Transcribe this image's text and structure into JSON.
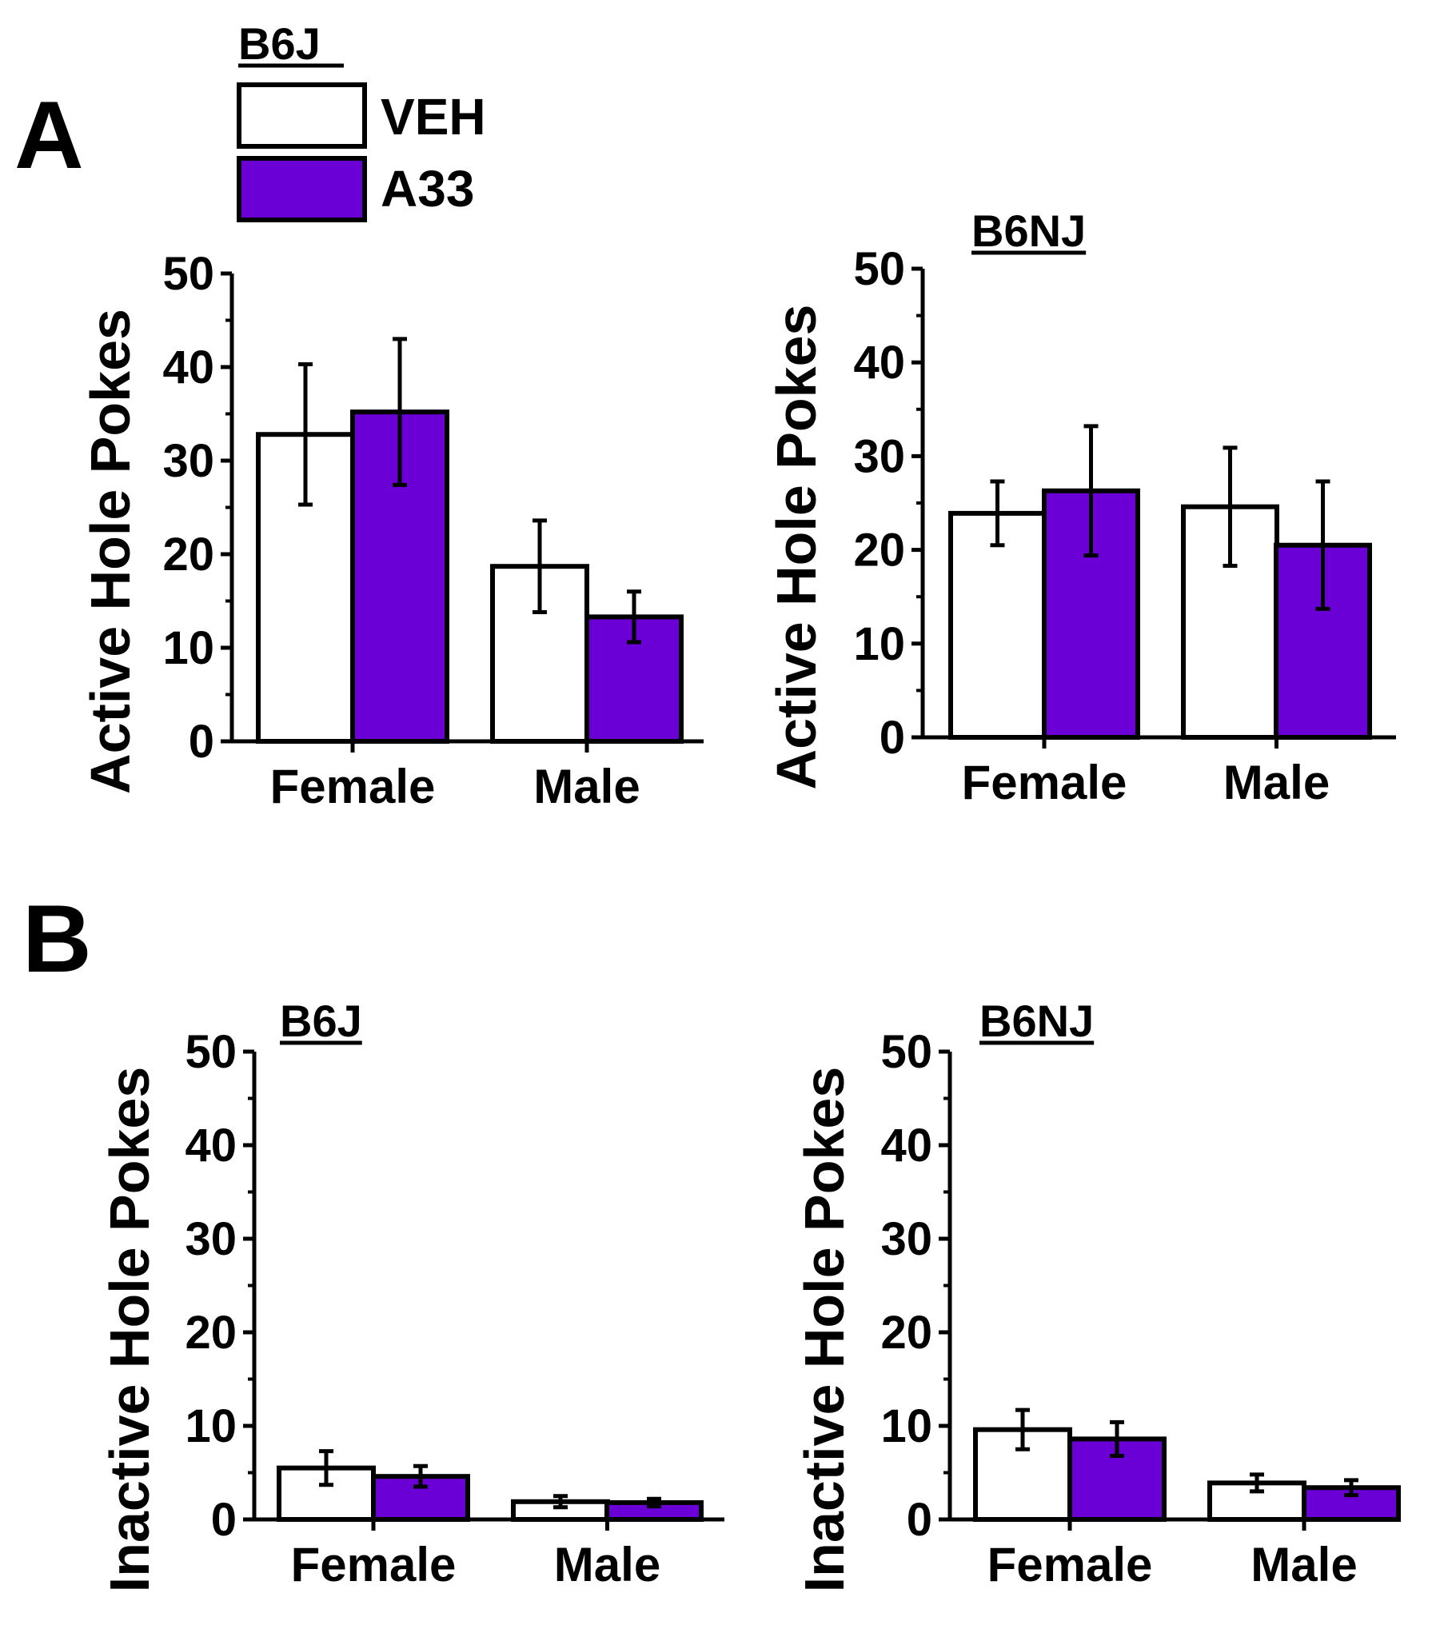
{
  "colors": {
    "veh": "#ffffff",
    "a33": "#6b00d6",
    "stroke": "#000000"
  },
  "panel_labels": {
    "a": "A",
    "b": "B"
  },
  "legend": {
    "title": "B6J",
    "items": [
      {
        "label": "VEH",
        "color": "#ffffff"
      },
      {
        "label": "A33",
        "color": "#6b00d6"
      }
    ]
  },
  "chart_data": [
    {
      "id": "active-b6j",
      "type": "bar",
      "title": "",
      "ylabel": "Active Hole Pokes",
      "ylim": [
        0,
        50
      ],
      "yticks": [
        0,
        10,
        20,
        30,
        40,
        50
      ],
      "categories": [
        "Female",
        "Male"
      ],
      "series": [
        {
          "name": "VEH",
          "values": [
            32.8,
            18.7
          ],
          "errors": [
            7.5,
            4.9
          ]
        },
        {
          "name": "A33",
          "values": [
            35.2,
            13.3
          ],
          "errors": [
            7.8,
            2.7
          ]
        }
      ]
    },
    {
      "id": "active-b6nj",
      "type": "bar",
      "title": "B6NJ",
      "ylabel": "Active Hole Pokes",
      "ylim": [
        0,
        50
      ],
      "yticks": [
        0,
        10,
        20,
        30,
        40,
        50
      ],
      "categories": [
        "Female",
        "Male"
      ],
      "series": [
        {
          "name": "VEH",
          "values": [
            23.9,
            24.6
          ],
          "errors": [
            3.4,
            6.3
          ]
        },
        {
          "name": "A33",
          "values": [
            26.3,
            20.5
          ],
          "errors": [
            6.9,
            6.8
          ]
        }
      ]
    },
    {
      "id": "inactive-b6j",
      "type": "bar",
      "title": "B6J",
      "ylabel": "Inactive Hole Pokes",
      "ylim": [
        0,
        50
      ],
      "yticks": [
        0,
        10,
        20,
        30,
        40,
        50
      ],
      "categories": [
        "Female",
        "Male"
      ],
      "series": [
        {
          "name": "VEH",
          "values": [
            5.5,
            1.9
          ],
          "errors": [
            1.8,
            0.6
          ]
        },
        {
          "name": "A33",
          "values": [
            4.6,
            1.8
          ],
          "errors": [
            1.1,
            0.4
          ]
        }
      ]
    },
    {
      "id": "inactive-b6nj",
      "type": "bar",
      "title": "B6NJ",
      "ylabel": "Inactive Hole Pokes",
      "ylim": [
        0,
        50
      ],
      "yticks": [
        0,
        10,
        20,
        30,
        40,
        50
      ],
      "categories": [
        "Female",
        "Male"
      ],
      "series": [
        {
          "name": "VEH",
          "values": [
            9.6,
            3.9
          ],
          "errors": [
            2.1,
            0.9
          ]
        },
        {
          "name": "A33",
          "values": [
            8.6,
            3.4
          ],
          "errors": [
            1.8,
            0.8
          ]
        }
      ]
    }
  ]
}
